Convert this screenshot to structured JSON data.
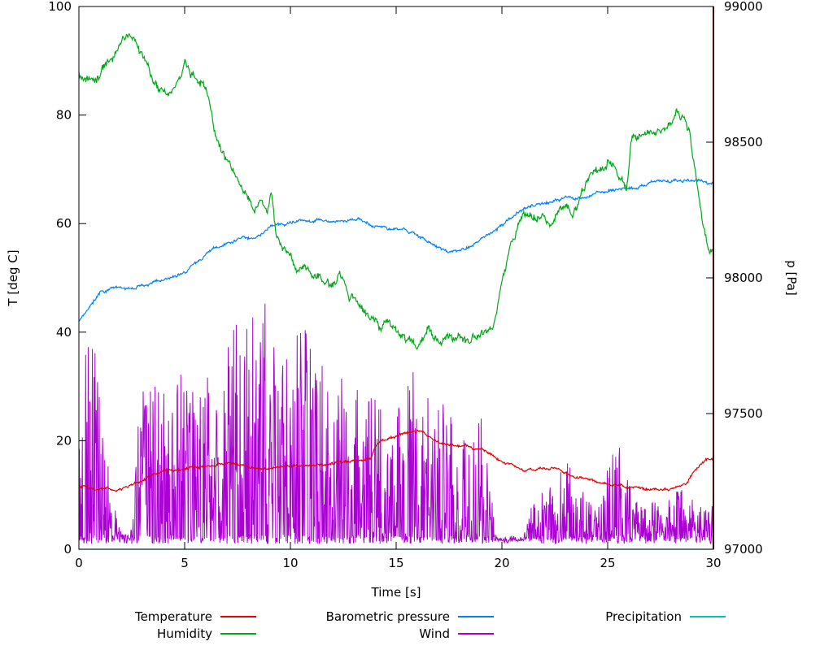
{
  "chart_data": {
    "type": "line",
    "title": "",
    "xlabel": "Time [s]",
    "ylabel_left": "T [deg C]",
    "ylabel_right": "p [Pa]",
    "xlim": [
      0,
      30
    ],
    "ylim_left": [
      0,
      100
    ],
    "ylim_right": [
      97000,
      99000
    ],
    "x_ticks": [
      0,
      5,
      10,
      15,
      20,
      25,
      30
    ],
    "y_ticks_left": [
      0,
      20,
      40,
      60,
      80,
      100
    ],
    "y_ticks_right": [
      97000,
      97500,
      98000,
      98500,
      99000
    ],
    "background": "#ffffff",
    "border_color": "#000000",
    "grid": false,
    "legend_position": "bottom",
    "marker_line": {
      "x": 30,
      "color": "#8b0000"
    },
    "series": [
      {
        "name": "Temperature",
        "color": "#e60000",
        "axis": "left",
        "style": "line",
        "noise": 0.35,
        "keypoints": [
          [
            0,
            11.5
          ],
          [
            0.3,
            11
          ],
          [
            1,
            11
          ],
          [
            2,
            11
          ],
          [
            2.4,
            11.3
          ],
          [
            3,
            12.5
          ],
          [
            4,
            14
          ],
          [
            5,
            14.5
          ],
          [
            6,
            15
          ],
          [
            7,
            15.3
          ],
          [
            8,
            15
          ],
          [
            9,
            15.5
          ],
          [
            10,
            15.8
          ],
          [
            11,
            16
          ],
          [
            12,
            16.3
          ],
          [
            13,
            16.8
          ],
          [
            13.8,
            17
          ],
          [
            14.1,
            19.5
          ],
          [
            14.4,
            20.3
          ],
          [
            15,
            20.8
          ],
          [
            15.6,
            21
          ],
          [
            16,
            21.3
          ],
          [
            16.4,
            21
          ],
          [
            17,
            20.3
          ],
          [
            17.5,
            19.8
          ],
          [
            18,
            19.3
          ],
          [
            18.5,
            18.8
          ],
          [
            19,
            18.3
          ],
          [
            19.5,
            17.5
          ],
          [
            20,
            16.3
          ],
          [
            20.5,
            15.2
          ],
          [
            21,
            14.6
          ],
          [
            21.5,
            14.5
          ],
          [
            22,
            14.5
          ],
          [
            22.5,
            14.4
          ],
          [
            23,
            14
          ],
          [
            23.5,
            13.6
          ],
          [
            24,
            13.2
          ],
          [
            24.5,
            12.6
          ],
          [
            25,
            12.1
          ],
          [
            25.5,
            11.6
          ],
          [
            26,
            11.2
          ],
          [
            26.5,
            10.9
          ],
          [
            27,
            10.6
          ],
          [
            27.5,
            10.5
          ],
          [
            28,
            10.6
          ],
          [
            28.5,
            11.2
          ],
          [
            28.8,
            12
          ],
          [
            29.2,
            14.5
          ],
          [
            29.5,
            15.8
          ],
          [
            30,
            16.5
          ]
        ]
      },
      {
        "name": "Humidity",
        "color": "#00a818",
        "axis": "left",
        "style": "line",
        "noise": 1.1,
        "keypoints": [
          [
            0,
            88
          ],
          [
            0.4,
            87
          ],
          [
            0.8,
            87.5
          ],
          [
            1.2,
            87.8
          ],
          [
            1.6,
            88.5
          ],
          [
            2,
            92
          ],
          [
            2.3,
            93.2
          ],
          [
            2.6,
            92.5
          ],
          [
            3,
            90
          ],
          [
            3.4,
            86
          ],
          [
            3.8,
            83
          ],
          [
            4.1,
            82.3
          ],
          [
            4.5,
            84
          ],
          [
            4.8,
            86
          ],
          [
            5,
            88.2
          ],
          [
            5.3,
            87.5
          ],
          [
            5.7,
            86
          ],
          [
            6,
            85
          ],
          [
            6.2,
            82
          ],
          [
            6.4,
            77
          ],
          [
            6.7,
            72.5
          ],
          [
            7,
            70
          ],
          [
            7.4,
            67.5
          ],
          [
            7.8,
            65.5
          ],
          [
            8,
            65
          ],
          [
            8.3,
            63
          ],
          [
            8.6,
            66.5
          ],
          [
            8.9,
            64
          ],
          [
            9.1,
            66.8
          ],
          [
            9.3,
            60
          ],
          [
            9.6,
            57.5
          ],
          [
            10,
            56
          ],
          [
            10.3,
            52.5
          ],
          [
            10.6,
            54
          ],
          [
            11,
            52
          ],
          [
            11.5,
            51
          ],
          [
            12,
            50.5
          ],
          [
            12.3,
            52
          ],
          [
            12.7,
            48.5
          ],
          [
            13,
            47
          ],
          [
            13.5,
            45
          ],
          [
            14,
            42.5
          ],
          [
            14.3,
            41
          ],
          [
            14.6,
            43.5
          ],
          [
            15,
            42
          ],
          [
            15.3,
            40
          ],
          [
            15.7,
            39
          ],
          [
            16,
            37.5
          ],
          [
            16.3,
            39.5
          ],
          [
            16.6,
            40.5
          ],
          [
            17,
            40
          ],
          [
            17.5,
            39.8
          ],
          [
            18,
            40
          ],
          [
            18.5,
            40.3
          ],
          [
            19,
            40.8
          ],
          [
            19.4,
            41.5
          ],
          [
            19.7,
            44
          ],
          [
            20,
            48
          ],
          [
            20.4,
            54
          ],
          [
            20.8,
            58
          ],
          [
            21,
            60
          ],
          [
            21.5,
            62
          ],
          [
            22,
            60
          ],
          [
            22.3,
            58.5
          ],
          [
            22.6,
            61
          ],
          [
            23,
            63
          ],
          [
            23.3,
            61.5
          ],
          [
            23.7,
            65
          ],
          [
            24,
            67.5
          ],
          [
            24.4,
            69.5
          ],
          [
            24.8,
            70.5
          ],
          [
            25,
            71
          ],
          [
            25.3,
            72
          ],
          [
            25.6,
            70
          ],
          [
            25.9,
            68
          ],
          [
            26.1,
            76
          ],
          [
            26.4,
            77
          ],
          [
            27,
            78
          ],
          [
            27.5,
            79
          ],
          [
            28,
            80
          ],
          [
            28.3,
            81
          ],
          [
            28.6,
            79.5
          ],
          [
            28.9,
            76
          ],
          [
            29.2,
            68
          ],
          [
            29.5,
            61
          ],
          [
            29.8,
            57
          ],
          [
            30,
            56
          ]
        ]
      },
      {
        "name": "Barometric pressure",
        "color": "#0080ff",
        "axis": "right",
        "style": "line",
        "noise": 8,
        "keypoints": [
          [
            0,
            97840
          ],
          [
            0.5,
            97890
          ],
          [
            1,
            97950
          ],
          [
            1.5,
            97960
          ],
          [
            2,
            97965
          ],
          [
            2.5,
            97970
          ],
          [
            3,
            97980
          ],
          [
            3.5,
            97990
          ],
          [
            4,
            98000
          ],
          [
            4.5,
            98010
          ],
          [
            5,
            98030
          ],
          [
            5.5,
            98060
          ],
          [
            6,
            98090
          ],
          [
            6.5,
            98120
          ],
          [
            7,
            98140
          ],
          [
            7.5,
            98150
          ],
          [
            8,
            98155
          ],
          [
            8.5,
            98160
          ],
          [
            9,
            98190
          ],
          [
            9.5,
            98200
          ],
          [
            10,
            98215
          ],
          [
            10.5,
            98220
          ],
          [
            11,
            98220
          ],
          [
            11.5,
            98225
          ],
          [
            12,
            98220
          ],
          [
            12.5,
            98220
          ],
          [
            13,
            98225
          ],
          [
            13.5,
            98215
          ],
          [
            14,
            98200
          ],
          [
            14.5,
            98190
          ],
          [
            15,
            98180
          ],
          [
            15.5,
            98170
          ],
          [
            16,
            98150
          ],
          [
            16.5,
            98120
          ],
          [
            17,
            98100
          ],
          [
            17.5,
            98085
          ],
          [
            18,
            98090
          ],
          [
            18.5,
            98100
          ],
          [
            19,
            98130
          ],
          [
            19.5,
            98160
          ],
          [
            20,
            98190
          ],
          [
            20.5,
            98215
          ],
          [
            21,
            98240
          ],
          [
            21.5,
            98255
          ],
          [
            22,
            98270
          ],
          [
            22.5,
            98280
          ],
          [
            23,
            98295
          ],
          [
            23.5,
            98300
          ],
          [
            24,
            98310
          ],
          [
            24.5,
            98320
          ],
          [
            25,
            98330
          ],
          [
            25.5,
            98340
          ],
          [
            26,
            98345
          ],
          [
            26.3,
            98330
          ],
          [
            26.6,
            98335
          ],
          [
            27,
            98340
          ],
          [
            27.5,
            98345
          ],
          [
            28,
            98345
          ],
          [
            28.5,
            98350
          ],
          [
            29,
            98360
          ],
          [
            29.3,
            98370
          ],
          [
            29.6,
            98355
          ],
          [
            30,
            98350
          ]
        ]
      },
      {
        "name": "Wind",
        "color": "#aa00d4",
        "axis": "left",
        "style": "spikes",
        "noise": 0,
        "keypoints": [
          [
            0,
            30
          ],
          [
            0.3,
            48
          ],
          [
            0.8,
            40
          ],
          [
            1.2,
            20
          ],
          [
            1.6,
            10
          ],
          [
            2,
            3
          ],
          [
            2.4,
            3
          ],
          [
            2.7,
            20
          ],
          [
            3,
            30
          ],
          [
            3.5,
            35
          ],
          [
            4,
            30
          ],
          [
            4.5,
            45
          ],
          [
            5,
            30
          ],
          [
            5.5,
            30
          ],
          [
            6,
            35
          ],
          [
            6.5,
            30
          ],
          [
            7,
            38
          ],
          [
            7.5,
            42
          ],
          [
            8,
            45
          ],
          [
            8.8,
            48
          ],
          [
            9,
            40
          ],
          [
            9.5,
            35
          ],
          [
            10,
            38
          ],
          [
            10.5,
            42
          ],
          [
            11,
            38
          ],
          [
            11.5,
            35
          ],
          [
            12,
            30
          ],
          [
            12.5,
            32
          ],
          [
            13,
            30
          ],
          [
            13.5,
            28
          ],
          [
            14,
            30
          ],
          [
            14.5,
            25
          ],
          [
            15,
            28
          ],
          [
            15.5,
            30
          ],
          [
            16,
            35
          ],
          [
            16.5,
            30
          ],
          [
            17,
            28
          ],
          [
            17.5,
            30
          ],
          [
            18,
            25
          ],
          [
            18.5,
            20
          ],
          [
            19,
            25
          ],
          [
            19.5,
            10
          ],
          [
            19.8,
            2
          ],
          [
            21,
            2
          ],
          [
            21.4,
            8
          ],
          [
            22,
            15
          ],
          [
            22.5,
            10
          ],
          [
            23,
            18
          ],
          [
            23.5,
            12
          ],
          [
            24,
            10
          ],
          [
            24.5,
            8
          ],
          [
            25,
            15
          ],
          [
            25.5,
            22
          ],
          [
            26,
            12
          ],
          [
            26.5,
            8
          ],
          [
            27,
            10
          ],
          [
            27.5,
            8
          ],
          [
            28,
            10
          ],
          [
            28.5,
            12
          ],
          [
            29,
            10
          ],
          [
            29.5,
            8
          ],
          [
            30,
            10
          ]
        ]
      },
      {
        "name": "Precipitation",
        "color": "#00c0c0",
        "axis": "left",
        "style": "line",
        "noise": 0,
        "keypoints": [
          [
            0,
            0
          ],
          [
            30,
            0
          ]
        ]
      }
    ]
  },
  "legend": {
    "items": [
      "Temperature",
      "Humidity",
      "Barometric pressure",
      "Wind",
      "Precipitation"
    ]
  }
}
